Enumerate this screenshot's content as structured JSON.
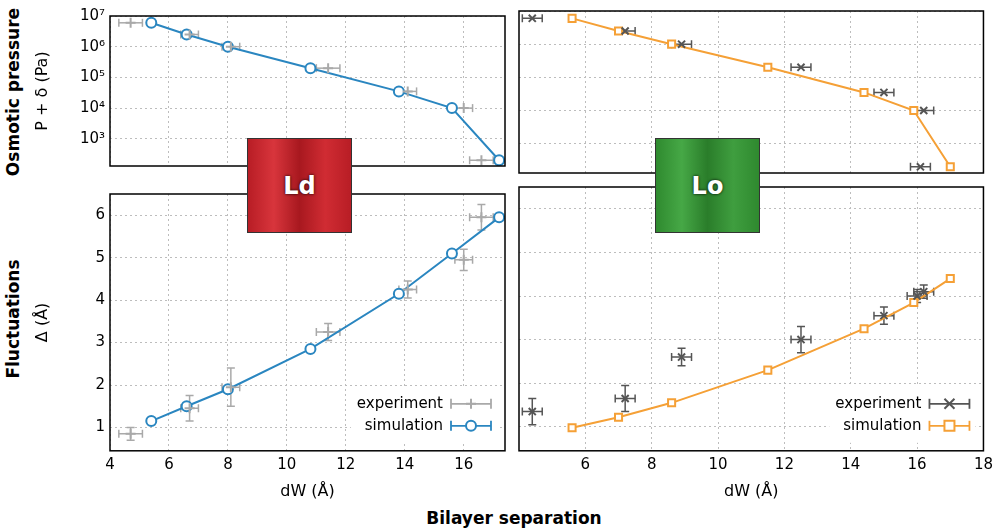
{
  "figure": {
    "row_labels": [
      "Osmotic pressure",
      "Fluctuations"
    ],
    "xlabel": "Bilayer separation"
  },
  "chart_data": [
    {
      "type": "scatter",
      "annotation": "Ld",
      "ylabel": "P + δ (Pa)",
      "log": "y",
      "grid": true,
      "tick_labels": "y",
      "xlim": [
        4,
        17.4
      ],
      "xticks": [
        4,
        6,
        8,
        10,
        12,
        14,
        16
      ],
      "ylim": [
        130,
        10000000
      ],
      "yticks": [
        {
          "value": 1000,
          "label": "10³"
        },
        {
          "value": 10000,
          "label": "10⁴"
        },
        {
          "value": 100000,
          "label": "10⁵"
        },
        {
          "value": 1000000,
          "label": "10⁶"
        },
        {
          "value": 10000000,
          "label": "10⁷"
        }
      ],
      "series": [
        {
          "name": "experiment",
          "color": "#a9a9a9",
          "marker": "plus",
          "line_style": "none",
          "x": [
            4.7,
            6.7,
            8.1,
            11.4,
            14.1,
            16.0,
            16.6
          ],
          "values": [
            6000000,
            2500000,
            1000000,
            200000,
            35000,
            10000,
            200
          ],
          "x_err": [
            0.4,
            0.3,
            0.3,
            0.4,
            0.3,
            0.3,
            0.4
          ]
        },
        {
          "name": "simulation",
          "color": "#2a86c0",
          "marker": "circle",
          "line_style": "solid",
          "x": [
            5.4,
            6.6,
            8.0,
            10.8,
            13.8,
            15.6,
            17.2
          ],
          "values": [
            6000000,
            2500000,
            1000000,
            200000,
            35000,
            10000,
            200
          ]
        }
      ]
    },
    {
      "type": "scatter",
      "annotation": "Lo",
      "log": "y",
      "grid": true,
      "tick_labels": false,
      "xlim": [
        4,
        18
      ],
      "xticks": [
        6,
        8,
        10,
        12,
        14,
        16,
        18
      ],
      "ylim": [
        130,
        10000000
      ],
      "yticks": [
        {
          "value": 1000,
          "label": "10³"
        },
        {
          "value": 10000,
          "label": "10⁴"
        },
        {
          "value": 100000,
          "label": "10⁵"
        },
        {
          "value": 1000000,
          "label": "10⁶"
        },
        {
          "value": 10000000,
          "label": "10⁷"
        }
      ],
      "series": [
        {
          "name": "experiment",
          "color": "#555555",
          "marker": "x",
          "line_style": "none",
          "x": [
            4.4,
            7.2,
            8.9,
            12.5,
            15.0,
            16.2,
            16.1
          ],
          "values": [
            6000000,
            2500000,
            1000000,
            200000,
            35000,
            10000,
            200
          ],
          "x_err": [
            0.3,
            0.3,
            0.3,
            0.3,
            0.3,
            0.3,
            0.3
          ]
        },
        {
          "name": "simulation",
          "color": "#f5a036",
          "marker": "square",
          "line_style": "solid",
          "x": [
            5.6,
            7.0,
            8.6,
            11.5,
            14.4,
            15.9,
            17.0
          ],
          "values": [
            6000000,
            2500000,
            1000000,
            200000,
            35000,
            10000,
            200
          ]
        }
      ]
    },
    {
      "type": "scatter",
      "xlabel": "dW (Å)",
      "ylabel": "Δ (Å)",
      "grid": true,
      "tick_labels": true,
      "legend": "bottom right",
      "xlim": [
        4,
        17.4
      ],
      "xticks": [
        4,
        6,
        8,
        10,
        12,
        14,
        16
      ],
      "ylim": [
        0.45,
        6.5
      ],
      "yticks": [
        1,
        2,
        3,
        4,
        5,
        6
      ],
      "series": [
        {
          "name": "experiment",
          "color": "#a9a9a9",
          "marker": "plus",
          "line_style": "none",
          "x": [
            4.7,
            6.7,
            8.1,
            11.4,
            14.1,
            16.0,
            16.6
          ],
          "values": [
            0.85,
            1.45,
            1.95,
            3.25,
            4.25,
            4.95,
            5.95
          ],
          "x_err": [
            0.4,
            0.3,
            0.3,
            0.4,
            0.3,
            0.3,
            0.4
          ],
          "y_err": [
            0.15,
            0.3,
            0.45,
            0.2,
            0.2,
            0.25,
            0.3
          ]
        },
        {
          "name": "simulation",
          "color": "#2a86c0",
          "marker": "circle",
          "line_style": "solid",
          "x": [
            5.4,
            6.6,
            8.0,
            10.8,
            13.8,
            15.6,
            17.2
          ],
          "values": [
            1.15,
            1.5,
            1.9,
            2.85,
            4.15,
            5.1,
            5.95
          ]
        }
      ]
    },
    {
      "type": "scatter",
      "xlabel": "dW (Å)",
      "grid": true,
      "tick_labels": "x",
      "legend": "bottom right",
      "xlim": [
        4,
        18
      ],
      "xticks": [
        6,
        8,
        10,
        12,
        14,
        16,
        18
      ],
      "ylim": [
        0.45,
        6.5
      ],
      "yticks": [
        1,
        2,
        3,
        4,
        5,
        6
      ],
      "series": [
        {
          "name": "experiment",
          "color": "#555555",
          "marker": "x",
          "line_style": "none",
          "x": [
            4.4,
            7.2,
            8.9,
            12.5,
            15.0,
            16.0,
            16.2
          ],
          "values": [
            1.35,
            1.65,
            2.6,
            3.0,
            3.55,
            4.0,
            4.1
          ],
          "x_err": [
            0.3,
            0.3,
            0.3,
            0.3,
            0.3,
            0.3,
            0.3
          ],
          "y_err": [
            0.3,
            0.3,
            0.2,
            0.3,
            0.2,
            0.15,
            0.15
          ]
        },
        {
          "name": "simulation",
          "color": "#f5a036",
          "marker": "square",
          "line_style": "solid",
          "x": [
            5.6,
            7.0,
            8.6,
            11.5,
            14.4,
            15.9,
            17.0
          ],
          "values": [
            0.98,
            1.22,
            1.55,
            2.3,
            3.25,
            3.85,
            4.4
          ]
        }
      ]
    }
  ]
}
